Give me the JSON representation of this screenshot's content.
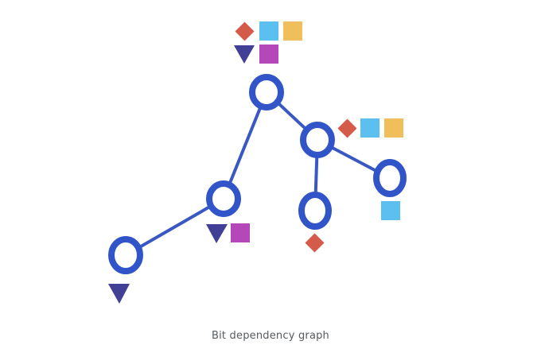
{
  "caption": "Bit dependency graph",
  "colors": {
    "node_stroke": "#3155c8",
    "edge": "#3a58c4",
    "diamond": "#d45a4a",
    "square_blue": "#5bbff0",
    "square_yellow": "#f0be5a",
    "triangle": "#413f96",
    "square_magenta": "#b548b8"
  },
  "icons": [
    "diamond-icon",
    "blue-square-icon",
    "yellow-square-icon",
    "triangle-icon",
    "magenta-square-icon"
  ]
}
